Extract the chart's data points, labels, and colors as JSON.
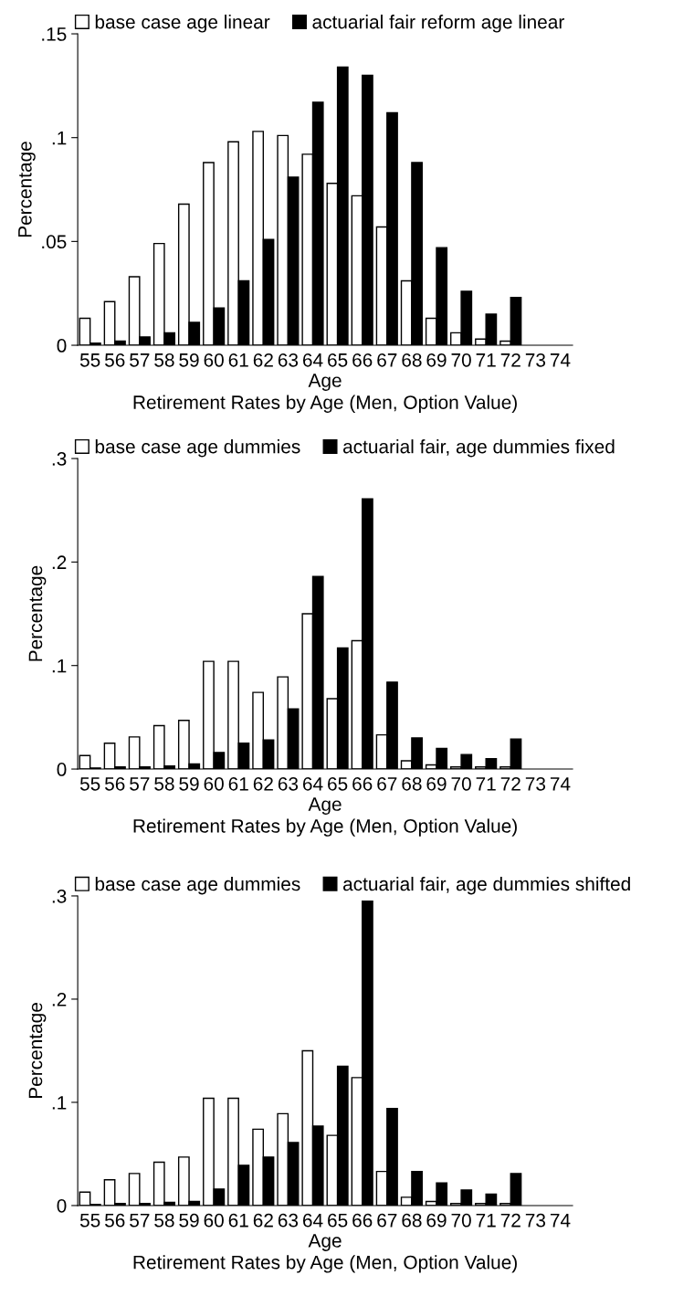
{
  "chart_data": [
    {
      "type": "bar",
      "title": "Retirement Rates by Age (Men, Option Value)",
      "xlabel": "Age",
      "ylabel": "Percentage",
      "categories": [
        "55",
        "56",
        "57",
        "58",
        "59",
        "60",
        "61",
        "62",
        "63",
        "64",
        "65",
        "66",
        "67",
        "68",
        "69",
        "70",
        "71",
        "72",
        "73",
        "74"
      ],
      "series": [
        {
          "name": "base case age linear",
          "color": "#ffffff",
          "values": [
            0.013,
            0.021,
            0.033,
            0.049,
            0.068,
            0.088,
            0.098,
            0.103,
            0.101,
            0.092,
            0.078,
            0.072,
            0.057,
            0.031,
            0.013,
            0.006,
            0.003,
            0.002,
            null,
            null
          ]
        },
        {
          "name": "actuarial fair reform age linear",
          "color": "#000000",
          "values": [
            0.001,
            0.002,
            0.004,
            0.006,
            0.011,
            0.018,
            0.031,
            0.051,
            0.081,
            0.117,
            0.134,
            0.13,
            0.112,
            0.088,
            0.047,
            0.026,
            0.015,
            0.023,
            null,
            null
          ]
        }
      ],
      "ylim": [
        0,
        0.15
      ],
      "yticks": [
        {
          "value": 0,
          "label": "0"
        },
        {
          "value": 0.05,
          "label": ".05"
        },
        {
          "value": 0.1,
          "label": ".1"
        },
        {
          "value": 0.15,
          "label": ".15"
        }
      ],
      "legend": "top",
      "grid": false
    },
    {
      "type": "bar",
      "title": "Retirement Rates by Age (Men, Option Value)",
      "xlabel": "Age",
      "ylabel": "Percentage",
      "categories": [
        "55",
        "56",
        "57",
        "58",
        "59",
        "60",
        "61",
        "62",
        "63",
        "64",
        "65",
        "66",
        "67",
        "68",
        "69",
        "70",
        "71",
        "72",
        "73",
        "74"
      ],
      "series": [
        {
          "name": "base case age dummies",
          "color": "#ffffff",
          "values": [
            0.013,
            0.025,
            0.031,
            0.042,
            0.047,
            0.104,
            0.104,
            0.074,
            0.089,
            0.15,
            0.068,
            0.124,
            0.033,
            0.008,
            0.004,
            0.002,
            0.002,
            0.002,
            null,
            null
          ]
        },
        {
          "name": "actuarial fair, age dummies fixed",
          "color": "#000000",
          "values": [
            0.001,
            0.002,
            0.002,
            0.003,
            0.005,
            0.016,
            0.025,
            0.028,
            0.058,
            0.186,
            0.117,
            0.261,
            0.084,
            0.03,
            0.02,
            0.014,
            0.01,
            0.029,
            null,
            null
          ]
        }
      ],
      "ylim": [
        0,
        0.3
      ],
      "yticks": [
        {
          "value": 0,
          "label": "0"
        },
        {
          "value": 0.1,
          "label": ".1"
        },
        {
          "value": 0.2,
          "label": ".2"
        },
        {
          "value": 0.3,
          "label": ".3"
        }
      ],
      "legend": "top",
      "grid": false
    },
    {
      "type": "bar",
      "title": "Retirement Rates by Age (Men, Option Value)",
      "xlabel": "Age",
      "ylabel": "Percentage",
      "categories": [
        "55",
        "56",
        "57",
        "58",
        "59",
        "60",
        "61",
        "62",
        "63",
        "64",
        "65",
        "66",
        "67",
        "68",
        "69",
        "70",
        "71",
        "72",
        "73",
        "74"
      ],
      "series": [
        {
          "name": "base case age dummies",
          "color": "#ffffff",
          "values": [
            0.013,
            0.025,
            0.031,
            0.042,
            0.047,
            0.104,
            0.104,
            0.074,
            0.089,
            0.15,
            0.068,
            0.124,
            0.033,
            0.008,
            0.004,
            0.002,
            0.002,
            0.002,
            null,
            null
          ]
        },
        {
          "name": "actuarial fair, age dummies shifted",
          "color": "#000000",
          "values": [
            0.001,
            0.002,
            0.002,
            0.003,
            0.004,
            0.016,
            0.039,
            0.047,
            0.061,
            0.077,
            0.135,
            0.295,
            0.094,
            0.033,
            0.022,
            0.015,
            0.011,
            0.031,
            null,
            null
          ]
        }
      ],
      "ylim": [
        0,
        0.3
      ],
      "yticks": [
        {
          "value": 0,
          "label": "0"
        },
        {
          "value": 0.1,
          "label": ".1"
        },
        {
          "value": 0.2,
          "label": ".2"
        },
        {
          "value": 0.3,
          "label": ".3"
        }
      ],
      "legend": "top",
      "grid": false
    }
  ]
}
